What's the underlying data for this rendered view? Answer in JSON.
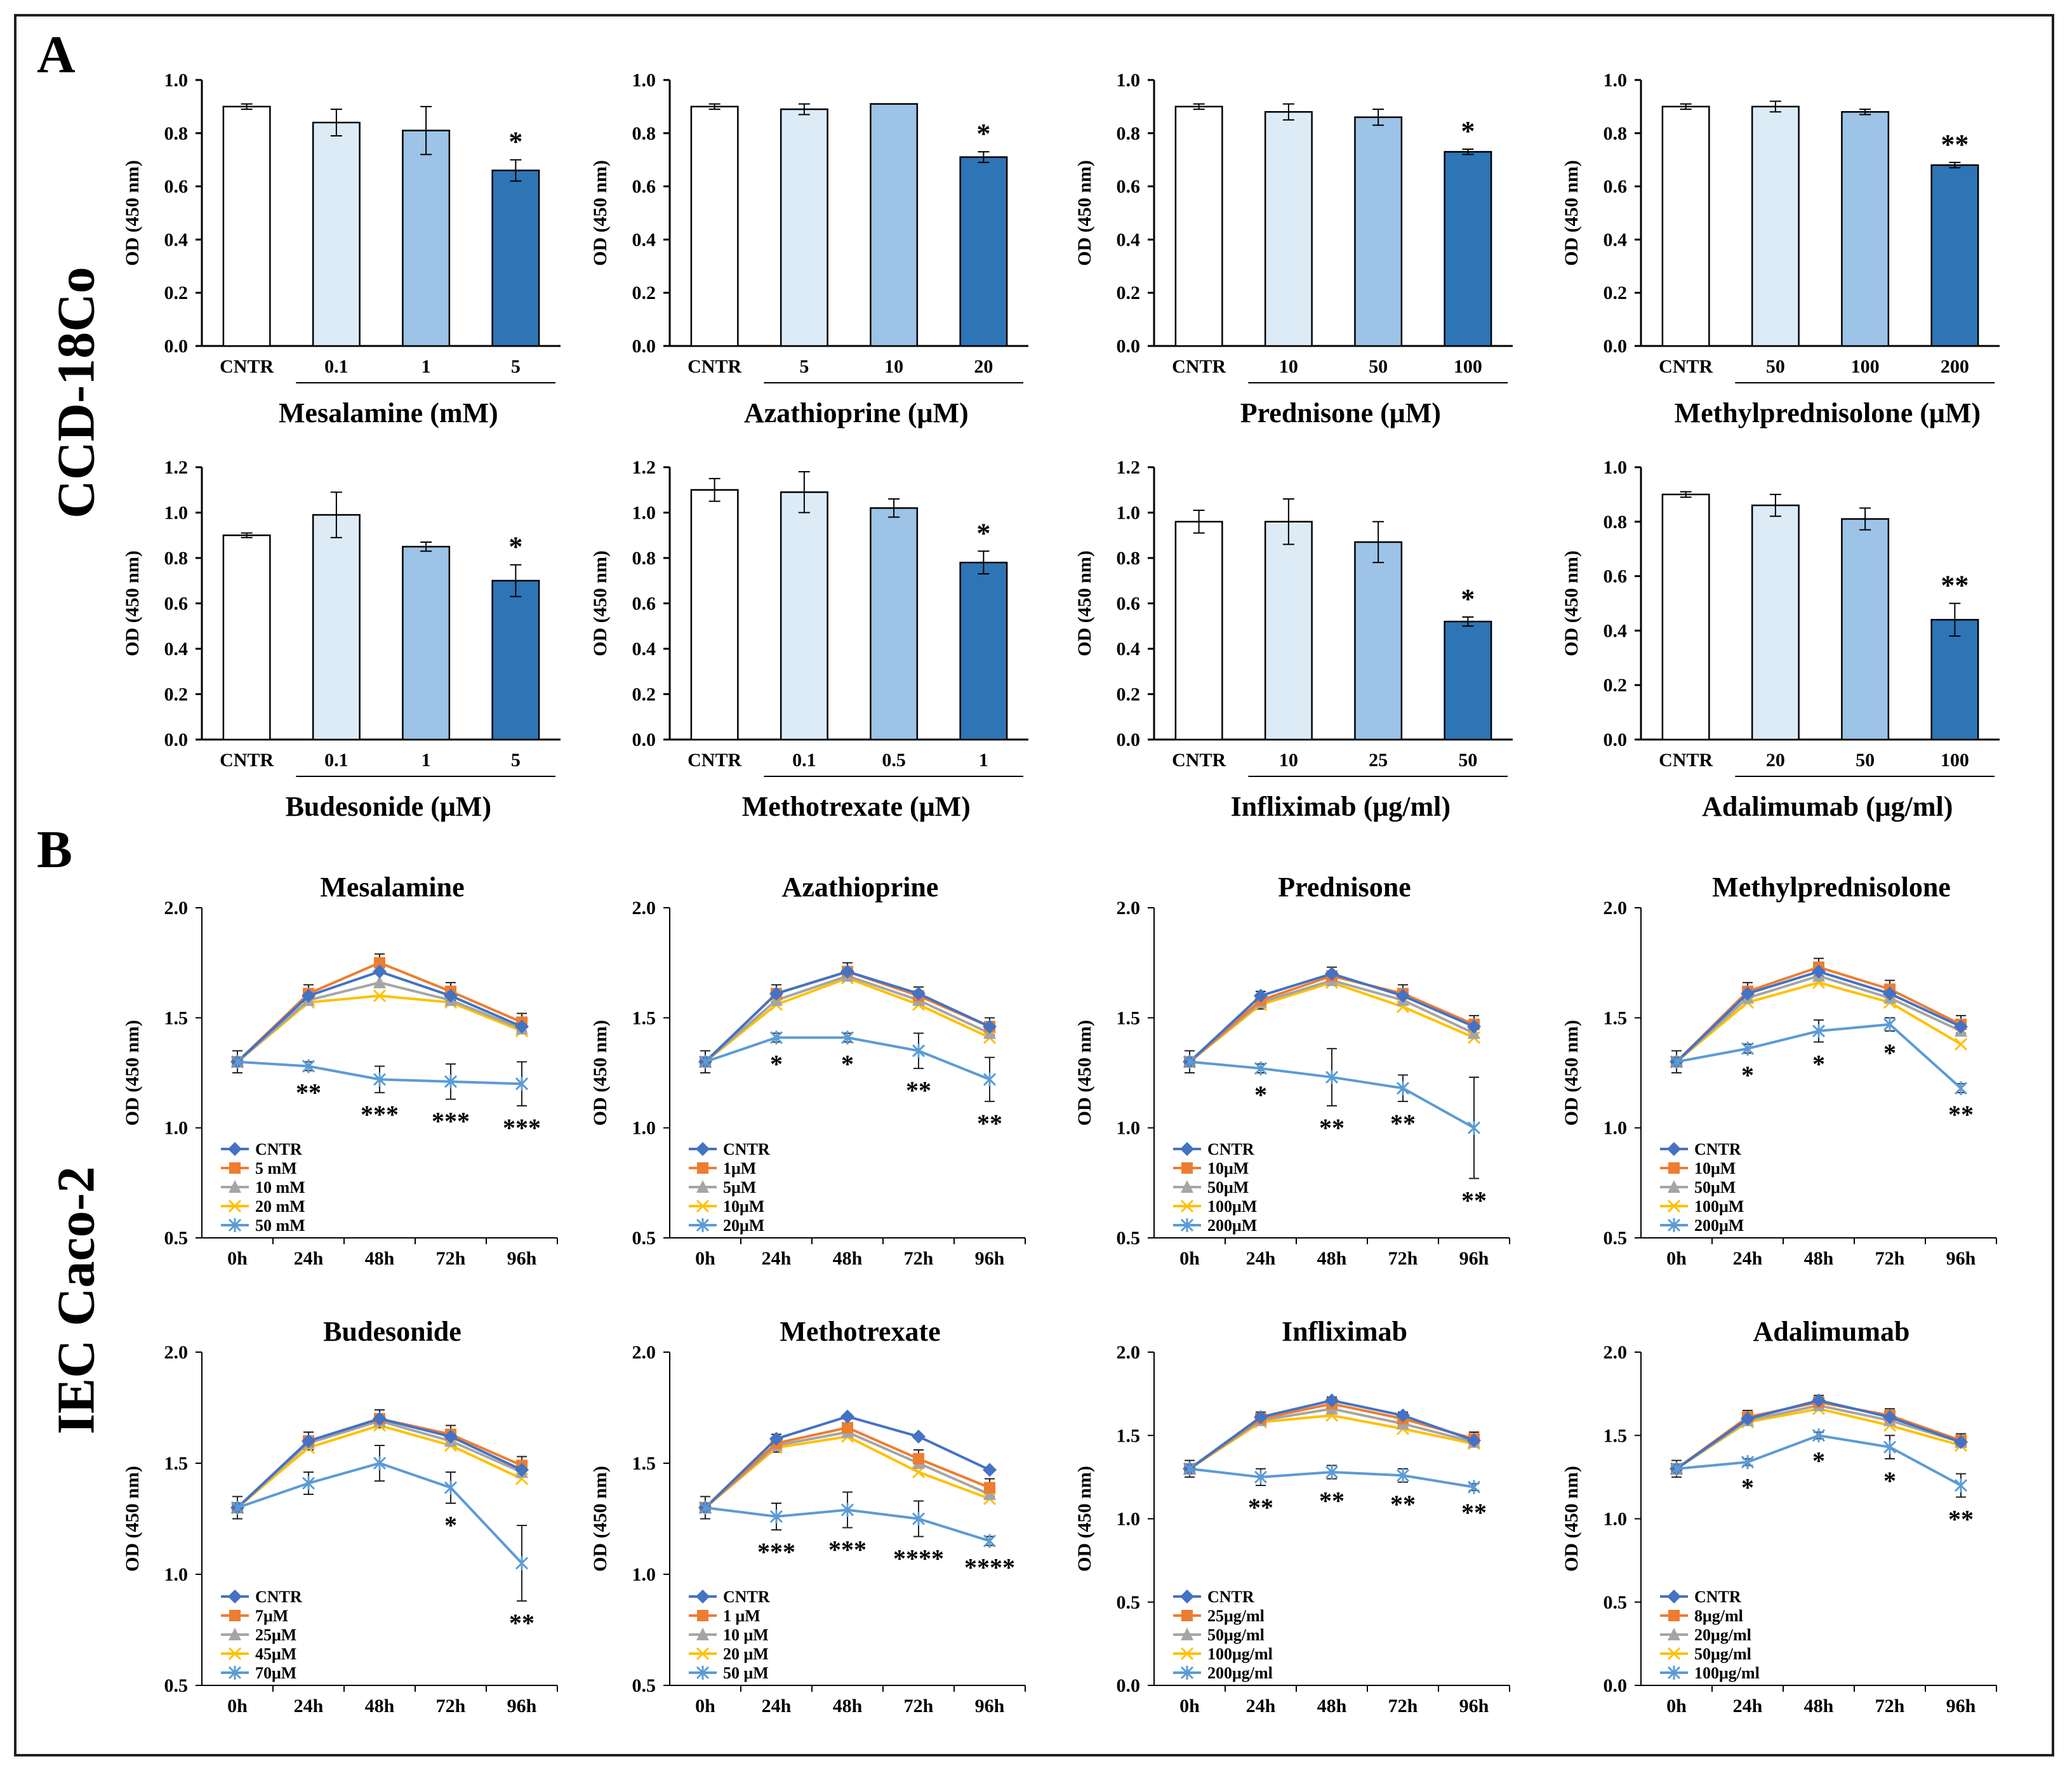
{
  "panels": {
    "A": "A",
    "B": "B"
  },
  "row_labels": {
    "A": "CCD-18Co",
    "B": "IEC Caco-2"
  },
  "colors": {
    "bar": [
      "#ffffff",
      "#ddebf7",
      "#9dc3e6",
      "#2e75b6"
    ],
    "line": [
      "#4472c4",
      "#ed7d31",
      "#a5a5a5",
      "#ffc000",
      "#5b9bd5"
    ]
  },
  "chart_data": [
    {
      "type": "bar",
      "panel": "A",
      "row": 0,
      "col": 0,
      "xlabel": "Mesalamine  (mM)",
      "ylabel": "OD (450 nm)",
      "ylim": [
        0,
        1.0
      ],
      "yticks": [
        "0.0",
        "0.2",
        "0.4",
        "0.6",
        "0.8",
        "1.0"
      ],
      "categories": [
        "CNTR",
        "0.1",
        "1",
        "5"
      ],
      "values": [
        0.9,
        0.84,
        0.81,
        0.66
      ],
      "errors": [
        0.01,
        0.05,
        0.09,
        0.04
      ],
      "annotations": [
        "",
        "",
        "",
        "*"
      ]
    },
    {
      "type": "bar",
      "panel": "A",
      "row": 0,
      "col": 1,
      "xlabel": "Azathioprine  (μM)",
      "ylabel": "OD (450 nm)",
      "ylim": [
        0,
        1.0
      ],
      "yticks": [
        "0.0",
        "0.2",
        "0.4",
        "0.6",
        "0.8",
        "1.0"
      ],
      "categories": [
        "CNTR",
        "5",
        "10",
        "20"
      ],
      "values": [
        0.9,
        0.89,
        0.91,
        0.71
      ],
      "errors": [
        0.01,
        0.02,
        0.0,
        0.02
      ],
      "annotations": [
        "",
        "",
        "",
        "*"
      ]
    },
    {
      "type": "bar",
      "panel": "A",
      "row": 0,
      "col": 2,
      "xlabel": "Prednisone  (μM)",
      "ylabel": "OD (450 nm)",
      "ylim": [
        0,
        1.0
      ],
      "yticks": [
        "0.0",
        "0.2",
        "0.4",
        "0.6",
        "0.8",
        "1.0"
      ],
      "categories": [
        "CNTR",
        "10",
        "50",
        "100"
      ],
      "values": [
        0.9,
        0.88,
        0.86,
        0.73
      ],
      "errors": [
        0.01,
        0.03,
        0.03,
        0.01
      ],
      "annotations": [
        "",
        "",
        "",
        "*"
      ]
    },
    {
      "type": "bar",
      "panel": "A",
      "row": 0,
      "col": 3,
      "xlabel": "Methylprednisolone  (μM)",
      "ylabel": "OD (450 nm)",
      "ylim": [
        0,
        1.0
      ],
      "yticks": [
        "0.0",
        "0.2",
        "0.4",
        "0.6",
        "0.8",
        "1.0"
      ],
      "categories": [
        "CNTR",
        "50",
        "100",
        "200"
      ],
      "values": [
        0.9,
        0.9,
        0.88,
        0.68
      ],
      "errors": [
        0.01,
        0.02,
        0.01,
        0.01
      ],
      "annotations": [
        "",
        "",
        "",
        "**"
      ]
    },
    {
      "type": "bar",
      "panel": "A",
      "row": 1,
      "col": 0,
      "xlabel": "Budesonide  (μM)",
      "ylabel": "OD (450 nm)",
      "ylim": [
        0,
        1.2
      ],
      "yticks": [
        "0.0",
        "0.2",
        "0.4",
        "0.6",
        "0.8",
        "1.0",
        "1.2"
      ],
      "categories": [
        "CNTR",
        "0.1",
        "1",
        "5"
      ],
      "values": [
        0.9,
        0.99,
        0.85,
        0.7
      ],
      "errors": [
        0.01,
        0.1,
        0.02,
        0.07
      ],
      "annotations": [
        "",
        "",
        "",
        "*"
      ]
    },
    {
      "type": "bar",
      "panel": "A",
      "row": 1,
      "col": 1,
      "xlabel": "Methotrexate  (μM)",
      "ylabel": "OD (450 nm)",
      "ylim": [
        0,
        1.2
      ],
      "yticks": [
        "0.0",
        "0.2",
        "0.4",
        "0.6",
        "0.8",
        "1.0",
        "1.2"
      ],
      "categories": [
        "CNTR",
        "0.1",
        "0.5",
        "1"
      ],
      "values": [
        1.1,
        1.09,
        1.02,
        0.78
      ],
      "errors": [
        0.05,
        0.09,
        0.04,
        0.05
      ],
      "annotations": [
        "",
        "",
        "",
        "*"
      ]
    },
    {
      "type": "bar",
      "panel": "A",
      "row": 1,
      "col": 2,
      "xlabel": "Infliximab  (μg/ml)",
      "ylabel": "OD (450 nm)",
      "ylim": [
        0,
        1.2
      ],
      "yticks": [
        "0.0",
        "0.2",
        "0.4",
        "0.6",
        "0.8",
        "1.0",
        "1.2"
      ],
      "categories": [
        "CNTR",
        "10",
        "25",
        "50"
      ],
      "values": [
        0.96,
        0.96,
        0.87,
        0.52
      ],
      "errors": [
        0.05,
        0.1,
        0.09,
        0.02
      ],
      "annotations": [
        "",
        "",
        "",
        "*"
      ]
    },
    {
      "type": "bar",
      "panel": "A",
      "row": 1,
      "col": 3,
      "xlabel": "Adalimumab  (μg/ml)",
      "ylabel": "OD (450 nm)",
      "ylim": [
        0,
        1.0
      ],
      "yticks": [
        "0.0",
        "0.2",
        "0.4",
        "0.6",
        "0.8",
        "1.0"
      ],
      "categories": [
        "CNTR",
        "20",
        "50",
        "100"
      ],
      "values": [
        0.9,
        0.86,
        0.81,
        0.44
      ],
      "errors": [
        0.01,
        0.04,
        0.04,
        0.06
      ],
      "annotations": [
        "",
        "",
        "",
        "**"
      ]
    },
    {
      "type": "line",
      "panel": "B",
      "row": 0,
      "col": 0,
      "title": "Mesalamine",
      "ylabel": "OD (450 nm)",
      "ylim": [
        0.5,
        2.0
      ],
      "yticks": [
        "0.5",
        "1.0",
        "1.5",
        "2.0"
      ],
      "x": [
        "0h",
        "24h",
        "48h",
        "72h",
        "96h"
      ],
      "series": [
        {
          "name": "CNTR",
          "values": [
            1.3,
            1.6,
            1.71,
            1.6,
            1.46
          ]
        },
        {
          "name": "5 mM",
          "values": [
            1.3,
            1.61,
            1.75,
            1.62,
            1.48
          ]
        },
        {
          "name": "10 mM",
          "values": [
            1.3,
            1.58,
            1.66,
            1.58,
            1.45
          ]
        },
        {
          "name": "20 mM",
          "values": [
            1.3,
            1.57,
            1.6,
            1.57,
            1.44
          ]
        },
        {
          "name": "50 mM",
          "values": [
            1.3,
            1.28,
            1.22,
            1.21,
            1.2
          ]
        }
      ],
      "errors": [
        0.05,
        0.02,
        0.06,
        0.08,
        0.1
      ],
      "annotations": [
        "",
        "**",
        "***",
        "***",
        "***"
      ]
    },
    {
      "type": "line",
      "panel": "B",
      "row": 0,
      "col": 1,
      "title": "Azathioprine",
      "ylabel": "OD (450 nm)",
      "ylim": [
        0.5,
        2.0
      ],
      "yticks": [
        "0.5",
        "1.0",
        "1.5",
        "2.0"
      ],
      "x": [
        "0h",
        "24h",
        "48h",
        "72h",
        "96h"
      ],
      "series": [
        {
          "name": "CNTR",
          "values": [
            1.3,
            1.61,
            1.71,
            1.61,
            1.46
          ]
        },
        {
          "name": "1μM",
          "values": [
            1.3,
            1.61,
            1.71,
            1.6,
            1.46
          ]
        },
        {
          "name": "5μM",
          "values": [
            1.3,
            1.58,
            1.69,
            1.58,
            1.43
          ]
        },
        {
          "name": "10μM",
          "values": [
            1.3,
            1.56,
            1.68,
            1.56,
            1.41
          ]
        },
        {
          "name": "20μM",
          "values": [
            1.3,
            1.41,
            1.41,
            1.35,
            1.22
          ]
        }
      ],
      "errors": [
        0.05,
        0.02,
        0.02,
        0.08,
        0.1
      ],
      "annotations": [
        "",
        "*",
        "*",
        "**",
        "**"
      ]
    },
    {
      "type": "line",
      "panel": "B",
      "row": 0,
      "col": 2,
      "title": "Prednisone",
      "ylabel": "OD (450 nm)",
      "ylim": [
        0.5,
        2.0
      ],
      "yticks": [
        "0.5",
        "1.0",
        "1.5",
        "2.0"
      ],
      "x": [
        "0h",
        "24h",
        "48h",
        "72h",
        "96h"
      ],
      "series": [
        {
          "name": "CNTR",
          "values": [
            1.3,
            1.6,
            1.7,
            1.6,
            1.46
          ]
        },
        {
          "name": "10μM",
          "values": [
            1.3,
            1.58,
            1.69,
            1.61,
            1.47
          ]
        },
        {
          "name": "50μM",
          "values": [
            1.3,
            1.57,
            1.67,
            1.58,
            1.43
          ]
        },
        {
          "name": "100μM",
          "values": [
            1.3,
            1.56,
            1.66,
            1.55,
            1.41
          ]
        },
        {
          "name": "200μM",
          "values": [
            1.3,
            1.27,
            1.23,
            1.18,
            1.0
          ]
        }
      ],
      "errors": [
        0.05,
        0.02,
        0.13,
        0.06,
        0.23
      ],
      "annotations": [
        "",
        "*",
        "**",
        "**",
        "**"
      ]
    },
    {
      "type": "line",
      "panel": "B",
      "row": 0,
      "col": 3,
      "title": "Methylprednisolone",
      "ylabel": "OD (450 nm)",
      "ylim": [
        0.5,
        2.0
      ],
      "yticks": [
        "0.5",
        "1.0",
        "1.5",
        "2.0"
      ],
      "x": [
        "0h",
        "24h",
        "48h",
        "72h",
        "96h"
      ],
      "series": [
        {
          "name": "CNTR",
          "values": [
            1.3,
            1.61,
            1.71,
            1.61,
            1.46
          ]
        },
        {
          "name": "10μM",
          "values": [
            1.3,
            1.62,
            1.73,
            1.63,
            1.47
          ]
        },
        {
          "name": "50μM",
          "values": [
            1.3,
            1.59,
            1.69,
            1.59,
            1.44
          ]
        },
        {
          "name": "100μM",
          "values": [
            1.3,
            1.57,
            1.66,
            1.57,
            1.38
          ]
        },
        {
          "name": "200μM",
          "values": [
            1.3,
            1.36,
            1.44,
            1.47,
            1.18
          ]
        }
      ],
      "errors": [
        0.05,
        0.02,
        0.05,
        0.03,
        0.02
      ],
      "annotations": [
        "",
        "*",
        "*",
        "*",
        "**"
      ]
    },
    {
      "type": "line",
      "panel": "B",
      "row": 1,
      "col": 0,
      "title": "Budesonide",
      "ylabel": "OD (450 nm)",
      "ylim": [
        0.5,
        2.0
      ],
      "yticks": [
        "0.5",
        "1.0",
        "1.5",
        "2.0"
      ],
      "x": [
        "0h",
        "24h",
        "48h",
        "72h",
        "96h"
      ],
      "series": [
        {
          "name": "CNTR",
          "values": [
            1.3,
            1.6,
            1.7,
            1.62,
            1.47
          ]
        },
        {
          "name": "7μM",
          "values": [
            1.3,
            1.6,
            1.7,
            1.63,
            1.49
          ]
        },
        {
          "name": "25μM",
          "values": [
            1.3,
            1.59,
            1.69,
            1.6,
            1.46
          ]
        },
        {
          "name": "45μM",
          "values": [
            1.3,
            1.57,
            1.67,
            1.58,
            1.43
          ]
        },
        {
          "name": "70μM",
          "values": [
            1.3,
            1.41,
            1.5,
            1.39,
            1.05
          ]
        }
      ],
      "errors": [
        0.05,
        0.05,
        0.08,
        0.07,
        0.17
      ],
      "annotations": [
        "",
        "",
        "",
        "*",
        "**"
      ]
    },
    {
      "type": "line",
      "panel": "B",
      "row": 1,
      "col": 1,
      "title": "Methotrexate",
      "ylabel": "OD (450 nm)",
      "ylim": [
        0.5,
        2.0
      ],
      "yticks": [
        "0.5",
        "1.0",
        "1.5",
        "2.0"
      ],
      "x": [
        "0h",
        "24h",
        "48h",
        "72h",
        "96h"
      ],
      "series": [
        {
          "name": "CNTR",
          "values": [
            1.3,
            1.61,
            1.71,
            1.62,
            1.47
          ]
        },
        {
          "name": "1 μM",
          "values": [
            1.3,
            1.59,
            1.66,
            1.52,
            1.39
          ]
        },
        {
          "name": "10 μM",
          "values": [
            1.3,
            1.58,
            1.64,
            1.5,
            1.36
          ]
        },
        {
          "name": "20 μM",
          "values": [
            1.3,
            1.57,
            1.62,
            1.46,
            1.34
          ]
        },
        {
          "name": "50 μM",
          "values": [
            1.3,
            1.26,
            1.29,
            1.25,
            1.15
          ]
        }
      ],
      "errors": [
        0.05,
        0.06,
        0.08,
        0.08,
        0.02
      ],
      "annotations": [
        "",
        "***",
        "***",
        "****",
        "****"
      ]
    },
    {
      "type": "line",
      "panel": "B",
      "row": 1,
      "col": 2,
      "title": "Infliximab",
      "ylabel": "OD (450 nm)",
      "ylim": [
        0,
        2.0
      ],
      "yticks": [
        "0.0",
        "0.5",
        "1.0",
        "1.5",
        "2.0"
      ],
      "x": [
        "0h",
        "24h",
        "48h",
        "72h",
        "96h"
      ],
      "series": [
        {
          "name": "CNTR",
          "values": [
            1.3,
            1.61,
            1.71,
            1.62,
            1.47
          ]
        },
        {
          "name": "25μg/ml",
          "values": [
            1.3,
            1.6,
            1.69,
            1.6,
            1.48
          ]
        },
        {
          "name": "50μg/ml",
          "values": [
            1.3,
            1.59,
            1.66,
            1.57,
            1.46
          ]
        },
        {
          "name": "100μg/ml",
          "values": [
            1.3,
            1.58,
            1.62,
            1.54,
            1.45
          ]
        },
        {
          "name": "200μg/ml",
          "values": [
            1.3,
            1.25,
            1.28,
            1.26,
            1.19
          ]
        }
      ],
      "errors": [
        0.05,
        0.05,
        0.04,
        0.04,
        0.02
      ],
      "annotations": [
        "",
        "**",
        "**",
        "**",
        "**"
      ]
    },
    {
      "type": "line",
      "panel": "B",
      "row": 1,
      "col": 3,
      "title": "Adalimumab",
      "ylabel": "OD (450 nm)",
      "ylim": [
        0,
        2.0
      ],
      "yticks": [
        "0.0",
        "0.5",
        "1.0",
        "1.5",
        "2.0"
      ],
      "x": [
        "0h",
        "24h",
        "48h",
        "72h",
        "96h"
      ],
      "series": [
        {
          "name": "CNTR",
          "values": [
            1.3,
            1.6,
            1.71,
            1.61,
            1.46
          ]
        },
        {
          "name": "8μg/ml",
          "values": [
            1.3,
            1.61,
            1.7,
            1.62,
            1.47
          ]
        },
        {
          "name": "20μg/ml",
          "values": [
            1.3,
            1.59,
            1.68,
            1.59,
            1.46
          ]
        },
        {
          "name": "50μg/ml",
          "values": [
            1.3,
            1.58,
            1.66,
            1.56,
            1.44
          ]
        },
        {
          "name": "100μg/ml",
          "values": [
            1.3,
            1.34,
            1.5,
            1.43,
            1.2
          ]
        }
      ],
      "errors": [
        0.05,
        0.02,
        0.02,
        0.07,
        0.07
      ],
      "annotations": [
        "",
        "*",
        "*",
        "*",
        "**"
      ]
    }
  ]
}
